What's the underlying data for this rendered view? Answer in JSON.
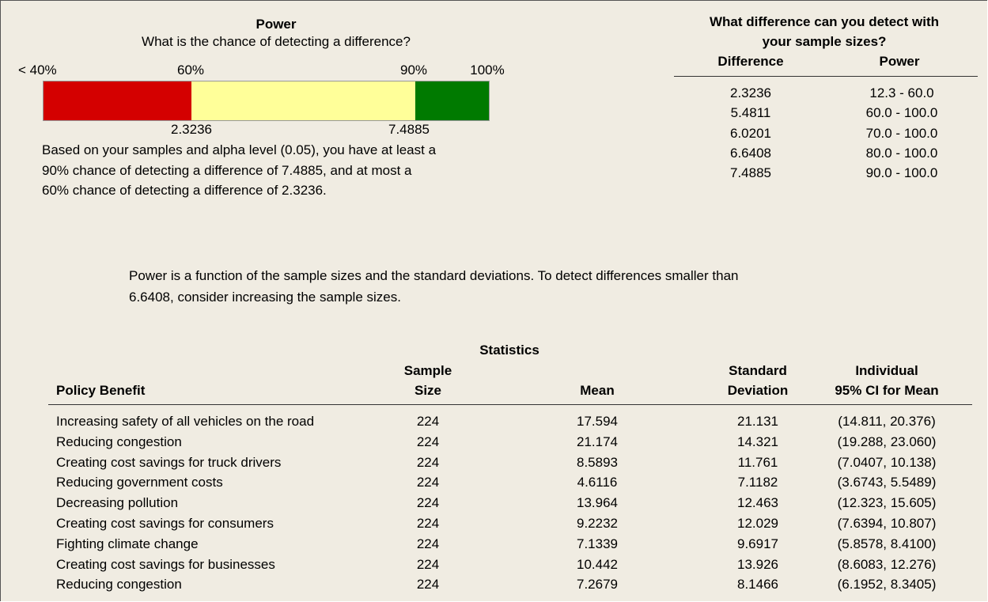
{
  "power": {
    "title": "Power",
    "subtitle": "What is the chance of detecting a difference?",
    "scale_labels": [
      "< 40%",
      "60%",
      "90%",
      "100%"
    ],
    "difference_labels": [
      "2.3236",
      "7.4885"
    ],
    "text": [
      "Based on your samples and alpha level (0.05), you have at least a",
      "90% chance of detecting a difference of 7.4885, and at most a",
      "60% chance of detecting a difference of 2.3236."
    ]
  },
  "detect": {
    "title": [
      "What difference can you detect with",
      "your sample sizes?"
    ],
    "headers": [
      "Difference",
      "Power"
    ],
    "rows": [
      [
        "2.3236",
        "12.3 - 60.0"
      ],
      [
        "5.4811",
        "60.0 - 100.0"
      ],
      [
        "6.0201",
        "70.0 - 100.0"
      ],
      [
        "6.6408",
        "80.0 - 100.0"
      ],
      [
        "7.4885",
        "90.0 - 100.0"
      ]
    ]
  },
  "note": [
    "Power is a function of the sample sizes and the standard deviations. To detect differences smaller than",
    "6.6408, consider increasing the sample sizes."
  ],
  "statistics": {
    "title": "Statistics",
    "headers": [
      [
        "Policy Benefit"
      ],
      [
        "Sample",
        "Size"
      ],
      [
        "Mean"
      ],
      [
        "Standard",
        "Deviation"
      ],
      [
        "Individual",
        "95% CI for Mean"
      ]
    ],
    "rows": [
      [
        "Increasing safety of all vehicles on the road",
        "224",
        "17.594",
        "21.131",
        "(14.811, 20.376)"
      ],
      [
        "Reducing congestion",
        "224",
        "21.174",
        "14.321",
        "(19.288, 23.060)"
      ],
      [
        "Creating cost savings for truck drivers",
        "224",
        "8.5893",
        "11.761",
        "(7.0407, 10.138)"
      ],
      [
        "Reducing government costs",
        "224",
        "4.6116",
        "7.1182",
        "(3.6743, 5.5489)"
      ],
      [
        "Decreasing pollution",
        "224",
        "13.964",
        "12.463",
        "(12.323, 15.605)"
      ],
      [
        "Creating cost savings for consumers",
        "224",
        "9.2232",
        "12.029",
        "(7.6394, 10.807)"
      ],
      [
        "Fighting climate change",
        "224",
        "7.1339",
        "9.6917",
        "(5.8578, 8.4100)"
      ],
      [
        "Creating cost savings for businesses",
        "224",
        "10.442",
        "13.926",
        "(8.6083, 12.276)"
      ],
      [
        "Reducing congestion",
        "224",
        "7.2679",
        "8.1466",
        "(6.1952, 8.3405)"
      ]
    ]
  }
}
